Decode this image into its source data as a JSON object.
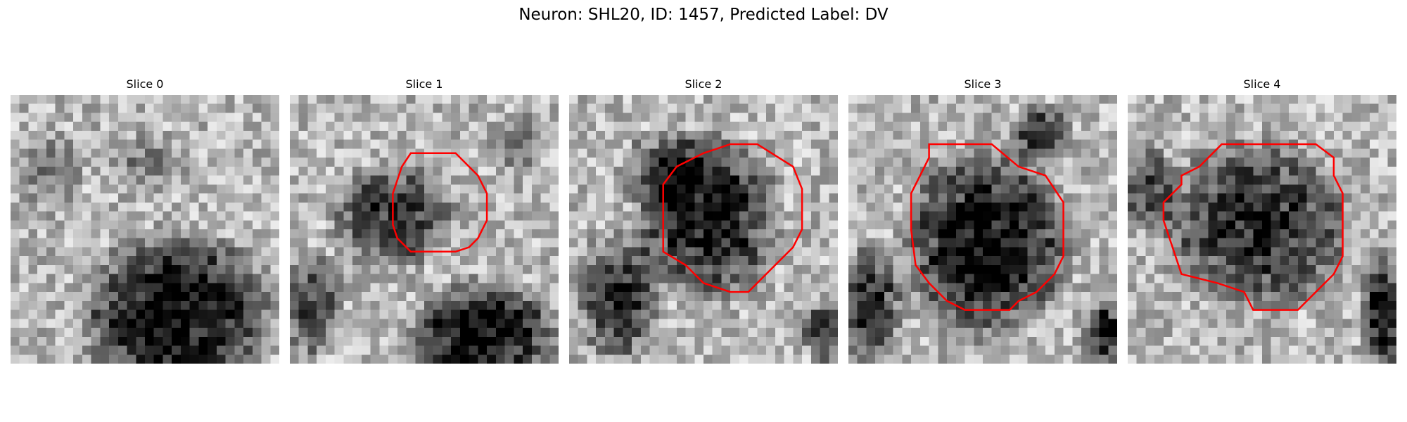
{
  "figure": {
    "title": "Neuron: SHL20, ID: 1457, Predicted Label: DV",
    "contour_color": "#ff0000"
  },
  "panels": [
    {
      "title": "Slice 0",
      "has_contour": false
    },
    {
      "title": "Slice 1",
      "has_contour": true
    },
    {
      "title": "Slice 2",
      "has_contour": true
    },
    {
      "title": "Slice 3",
      "has_contour": true
    },
    {
      "title": "Slice 4",
      "has_contour": true
    }
  ]
}
